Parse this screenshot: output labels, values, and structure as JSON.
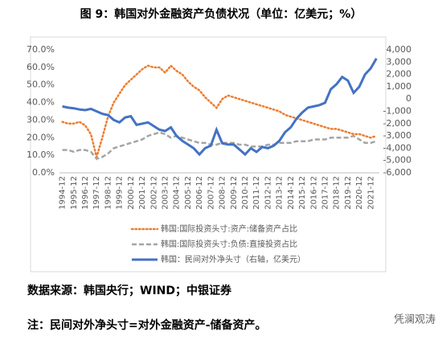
{
  "chart_data": {
    "type": "line",
    "title": "图 9：韩国对外金融资产负债状况（单位：亿美元；%）",
    "categories": [
      "1994-12",
      null,
      "1995-12",
      null,
      "1996-12",
      null,
      "1997-12",
      null,
      "1998-12",
      null,
      "1999-12",
      null,
      "2000-12",
      null,
      "2001-12",
      null,
      "2002-12",
      null,
      "2003-12",
      null,
      "2004-12",
      null,
      "2005-12",
      null,
      "2006-12",
      null,
      "2007-12",
      null,
      "2008-12",
      null,
      "2009-12",
      null,
      "2010-12",
      null,
      "2011-12",
      null,
      "2012-12",
      null,
      "2013-12",
      null,
      "2014-12",
      null,
      "2015-12",
      null,
      "2016-12",
      null,
      "2017-12",
      null,
      "2018-12",
      null,
      "2019-12",
      null,
      "2020-12",
      null,
      "2021-12",
      null
    ],
    "series": [
      {
        "name": "韩国:国际投资头寸:资产:储备资产占比",
        "color": "#ed7d31",
        "style": "dotted",
        "values": [
          29,
          28,
          28,
          29,
          27,
          22,
          9,
          20,
          32,
          40,
          45,
          50,
          53,
          56,
          59,
          61,
          60,
          60,
          57,
          61,
          58,
          56,
          52,
          49,
          47,
          43,
          40,
          37,
          42,
          44,
          43,
          42,
          41,
          40,
          39,
          38,
          37,
          36,
          35,
          33,
          32,
          31,
          30,
          29,
          28,
          27,
          26,
          25,
          25,
          24,
          23,
          22,
          22,
          21,
          20,
          21
        ]
      },
      {
        "name": "韩国:国际投资头寸:负债:直接投资占比",
        "color": "#a5a5a5",
        "style": "dashed",
        "values": [
          13,
          13,
          12,
          13,
          13,
          12,
          8,
          9,
          11,
          14,
          15,
          16,
          17,
          18,
          19,
          21,
          22,
          23,
          22,
          20,
          21,
          20,
          19,
          18,
          17,
          17,
          16,
          16,
          17,
          17,
          17,
          16,
          16,
          15,
          15,
          15,
          16,
          16,
          17,
          17,
          17,
          18,
          18,
          18,
          19,
          19,
          19,
          20,
          20,
          20,
          20,
          21,
          19,
          17,
          17,
          18
        ]
      },
      {
        "name": "韩国：民间对外净头寸（右轴，亿美元）",
        "color": "#4472c4",
        "style": "solid",
        "axis": "y2",
        "values": [
          -600,
          -700,
          -750,
          -850,
          -900,
          -800,
          -1000,
          -1200,
          -1300,
          -1700,
          -1900,
          -1500,
          -1400,
          -2100,
          -2000,
          -1900,
          -2200,
          -2500,
          -2600,
          -2300,
          -3000,
          -3400,
          -3700,
          -4000,
          -4500,
          -4000,
          -3800,
          -2500,
          -3600,
          -3700,
          -3700,
          -4100,
          -4500,
          -4000,
          -4300,
          -3900,
          -4000,
          -3800,
          -3400,
          -2700,
          -2300,
          -1600,
          -1100,
          -700,
          -600,
          -500,
          -300,
          800,
          1200,
          1800,
          1500,
          500,
          1000,
          2000,
          2500,
          3300
        ]
      }
    ],
    "ylim": [
      0,
      70
    ],
    "yticks": [
      {
        "value": 0,
        "label": "0.0%"
      },
      {
        "value": 10,
        "label": "10.0%"
      },
      {
        "value": 20,
        "label": "20.0%"
      },
      {
        "value": 30,
        "label": "30.0%"
      },
      {
        "value": 40,
        "label": "40.0%"
      },
      {
        "value": 50,
        "label": "50.0%"
      },
      {
        "value": 60,
        "label": "60.0%"
      },
      {
        "value": 70,
        "label": "70.0%"
      }
    ],
    "y2lim": [
      -6000,
      4000
    ],
    "y2ticks": [
      {
        "value": -6000,
        "label": "-6,000"
      },
      {
        "value": -5000,
        "label": "-5,000"
      },
      {
        "value": -4000,
        "label": "-4,000"
      },
      {
        "value": -3000,
        "label": "-3,000"
      },
      {
        "value": -2000,
        "label": "-2,000"
      },
      {
        "value": -1000,
        "label": "-1,000"
      },
      0,
      {
        "value": 1000,
        "label": "1,000"
      },
      {
        "value": 2000,
        "label": "2,000"
      },
      {
        "value": 3000,
        "label": "3,000"
      },
      {
        "value": 4000,
        "label": "4,000"
      }
    ],
    "grid": false,
    "legend": "bottom",
    "source": "数据来源：韩国央行；WIND；中银证券",
    "note": "注：民间对外净头寸=对外金融资产-储备资产。",
    "watermark": "凭澜观涛"
  }
}
